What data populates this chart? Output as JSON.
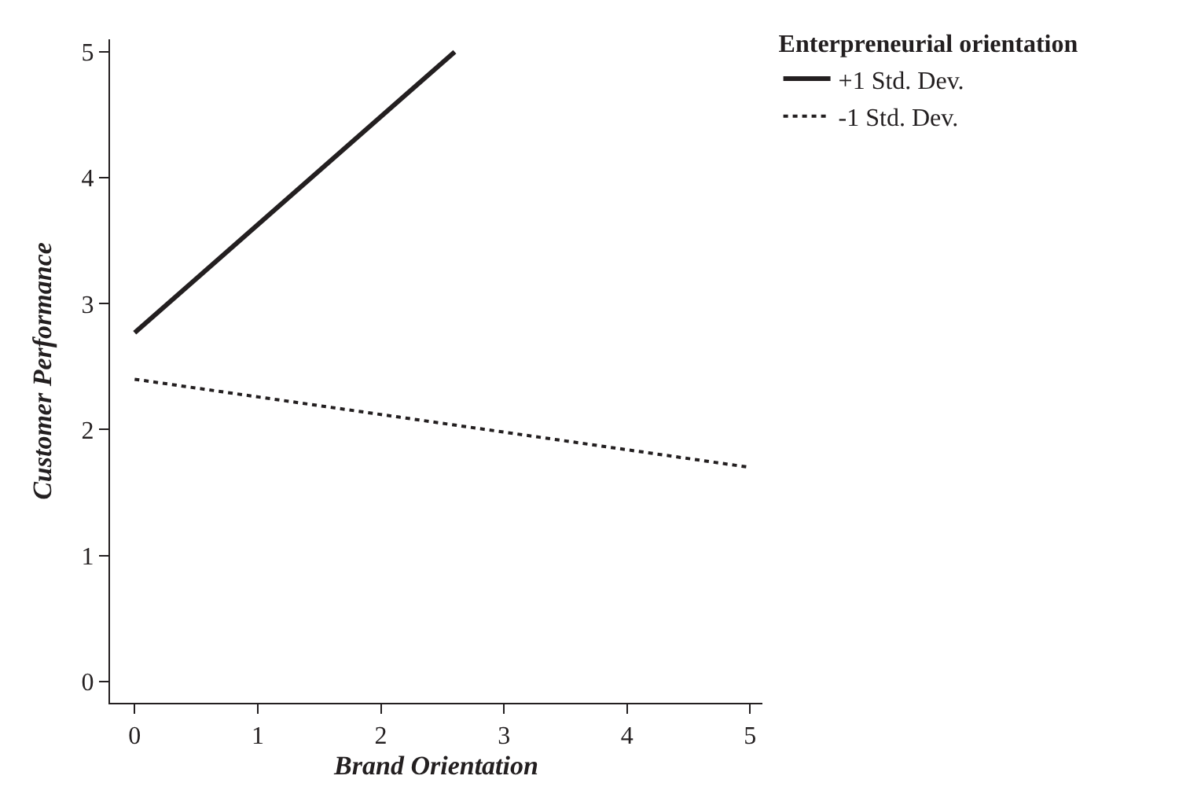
{
  "chart_data": {
    "type": "line",
    "xlabel": "Brand Orientation",
    "ylabel": "Customer Performance",
    "legend_title": "Enterpreneurial orientation",
    "series": [
      {
        "name": "+1 Std. Dev.",
        "color": "#231f20",
        "x": [
          0,
          2.6
        ],
        "values": [
          2.77,
          5.0
        ],
        "line_style": "solid"
      },
      {
        "name": "-1 Std. Dev.",
        "color": "#231f20",
        "x": [
          0,
          5
        ],
        "values": [
          2.4,
          1.7
        ],
        "line_style": "dotted"
      }
    ],
    "xlim": [
      -0.2,
      5.1
    ],
    "ylim": [
      -0.17,
      5.1
    ],
    "xticks": [
      0,
      1,
      2,
      3,
      4,
      5
    ],
    "yticks": [
      0,
      1,
      2,
      3,
      4,
      5
    ],
    "legend": "top right",
    "marker": "none"
  }
}
